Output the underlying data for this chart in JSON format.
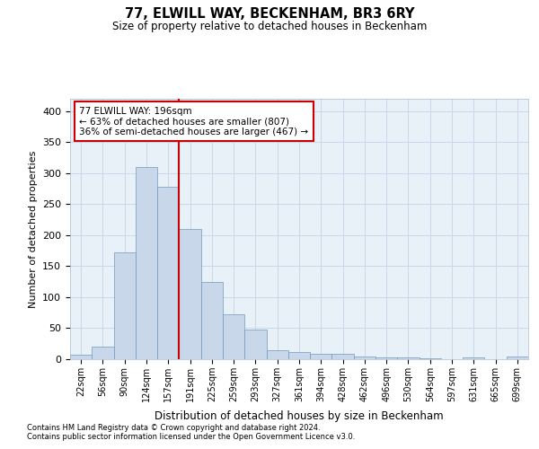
{
  "title": "77, ELWILL WAY, BECKENHAM, BR3 6RY",
  "subtitle": "Size of property relative to detached houses in Beckenham",
  "xlabel": "Distribution of detached houses by size in Beckenham",
  "ylabel": "Number of detached properties",
  "bin_labels": [
    "22sqm",
    "56sqm",
    "90sqm",
    "124sqm",
    "157sqm",
    "191sqm",
    "225sqm",
    "259sqm",
    "293sqm",
    "327sqm",
    "361sqm",
    "394sqm",
    "428sqm",
    "462sqm",
    "496sqm",
    "530sqm",
    "564sqm",
    "597sqm",
    "631sqm",
    "665sqm",
    "699sqm"
  ],
  "bar_heights": [
    7,
    20,
    172,
    310,
    278,
    210,
    125,
    73,
    48,
    14,
    12,
    8,
    8,
    5,
    3,
    3,
    1,
    0,
    3,
    0,
    4
  ],
  "bar_color": "#c8d8ea",
  "bar_edge_color": "#7099bb",
  "vline_color": "#cc0000",
  "vline_index": 4.5,
  "ylim": [
    0,
    420
  ],
  "yticks": [
    0,
    50,
    100,
    150,
    200,
    250,
    300,
    350,
    400
  ],
  "background_color": "#ffffff",
  "plot_bg_color": "#e8f0f8",
  "grid_color": "#c8d8e8",
  "property_label": "77 ELWILL WAY: 196sqm",
  "annotation_line1": "← 63% of detached houses are smaller (807)",
  "annotation_line2": "36% of semi-detached houses are larger (467) →",
  "footnote1": "Contains HM Land Registry data © Crown copyright and database right 2024.",
  "footnote2": "Contains public sector information licensed under the Open Government Licence v3.0."
}
